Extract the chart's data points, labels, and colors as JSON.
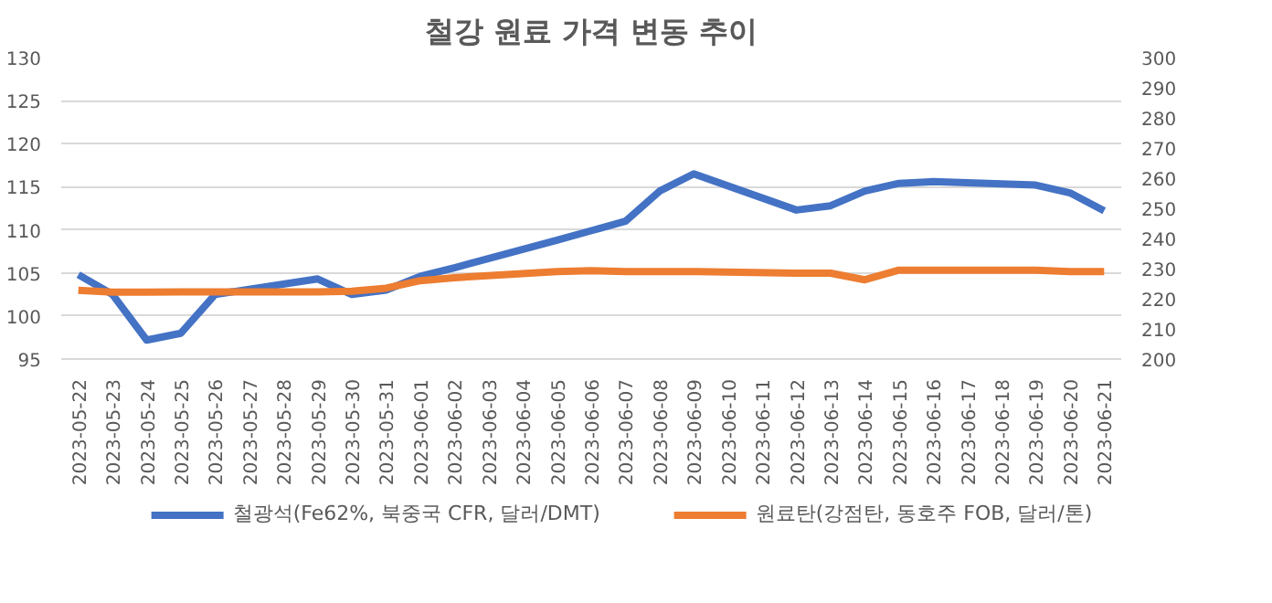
{
  "chart_data": {
    "type": "line",
    "title": "철강 원료 가격 변동 추이",
    "categories": [
      "2023-05-22",
      "2023-05-23",
      "2023-05-24",
      "2023-05-25",
      "2023-05-26",
      "2023-05-27",
      "2023-05-28",
      "2023-05-29",
      "2023-05-30",
      "2023-05-31",
      "2023-06-01",
      "2023-06-02",
      "2023-06-03",
      "2023-06-04",
      "2023-06-05",
      "2023-06-06",
      "2023-06-07",
      "2023-06-08",
      "2023-06-09",
      "2023-06-10",
      "2023-06-11",
      "2023-06-12",
      "2023-06-13",
      "2023-06-14",
      "2023-06-15",
      "2023-06-16",
      "2023-06-17",
      "2023-06-18",
      "2023-06-19",
      "2023-06-20",
      "2023-06-21"
    ],
    "series": [
      {
        "name": "철광석(Fe62%, 북중국 CFR, 달러/DMT)",
        "color": "#4472c4",
        "values": [
          104.8,
          102.5,
          97.2,
          98.0,
          102.5,
          null,
          null,
          104.3,
          102.5,
          103.0,
          104.6,
          105.6,
          null,
          null,
          108.8,
          109.9,
          111.0,
          114.5,
          116.5,
          null,
          null,
          112.3,
          112.8,
          114.5,
          115.4,
          115.6,
          null,
          null,
          115.2,
          114.3,
          112.2
        ]
      },
      {
        "name": "원료탄(강점탄, 동호주 FOB, 달러/톤)",
        "color": "#ed7d31",
        "axis": "y2",
        "values": [
          222.8,
          222.2,
          222.2,
          222.3,
          222.3,
          null,
          null,
          222.3,
          222.5,
          223.5,
          226,
          227,
          null,
          null,
          229,
          229.3,
          229,
          229,
          229,
          null,
          null,
          228.5,
          228.5,
          226.3,
          229.5,
          229.5,
          null,
          null,
          229.5,
          229,
          229
        ]
      }
    ],
    "ylim": [
      95,
      130
    ],
    "yticks": [
      95,
      100,
      105,
      110,
      115,
      120,
      125,
      130
    ],
    "y2lim": [
      200,
      300
    ],
    "y2ticks": [
      200,
      210,
      220,
      230,
      240,
      250,
      260,
      270,
      280,
      290,
      300
    ],
    "grid": "y",
    "legend": "bottom",
    "marker": "none",
    "line_style": "solid"
  }
}
